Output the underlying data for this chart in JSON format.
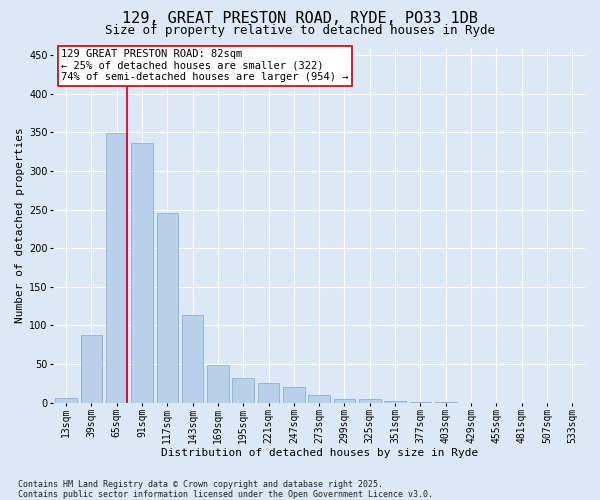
{
  "title": "129, GREAT PRESTON ROAD, RYDE, PO33 1DB",
  "subtitle": "Size of property relative to detached houses in Ryde",
  "xlabel": "Distribution of detached houses by size in Ryde",
  "ylabel": "Number of detached properties",
  "categories": [
    "13sqm",
    "39sqm",
    "65sqm",
    "91sqm",
    "117sqm",
    "143sqm",
    "169sqm",
    "195sqm",
    "221sqm",
    "247sqm",
    "273sqm",
    "299sqm",
    "325sqm",
    "351sqm",
    "377sqm",
    "403sqm",
    "429sqm",
    "455sqm",
    "481sqm",
    "507sqm",
    "533sqm"
  ],
  "values": [
    6,
    88,
    349,
    336,
    246,
    113,
    48,
    32,
    25,
    20,
    10,
    5,
    4,
    2,
    1,
    1,
    0,
    0,
    0,
    0,
    0
  ],
  "bar_color": "#b8d0ea",
  "bar_edge_color": "#8ab0d0",
  "vline_color": "#cc0000",
  "vline_x": 2.42,
  "annotation_text": "129 GREAT PRESTON ROAD: 82sqm\n← 25% of detached houses are smaller (322)\n74% of semi-detached houses are larger (954) →",
  "annotation_box_color": "#ffffff",
  "annotation_box_edge": "#cc0000",
  "ylim": [
    0,
    460
  ],
  "yticks": [
    0,
    50,
    100,
    150,
    200,
    250,
    300,
    350,
    400,
    450
  ],
  "background_color": "#dce8f5",
  "grid_color": "#ffffff",
  "footer": "Contains HM Land Registry data © Crown copyright and database right 2025.\nContains public sector information licensed under the Open Government Licence v3.0.",
  "title_fontsize": 11,
  "subtitle_fontsize": 9,
  "axis_label_fontsize": 8,
  "tick_fontsize": 7,
  "annotation_fontsize": 7.5,
  "footer_fontsize": 6
}
